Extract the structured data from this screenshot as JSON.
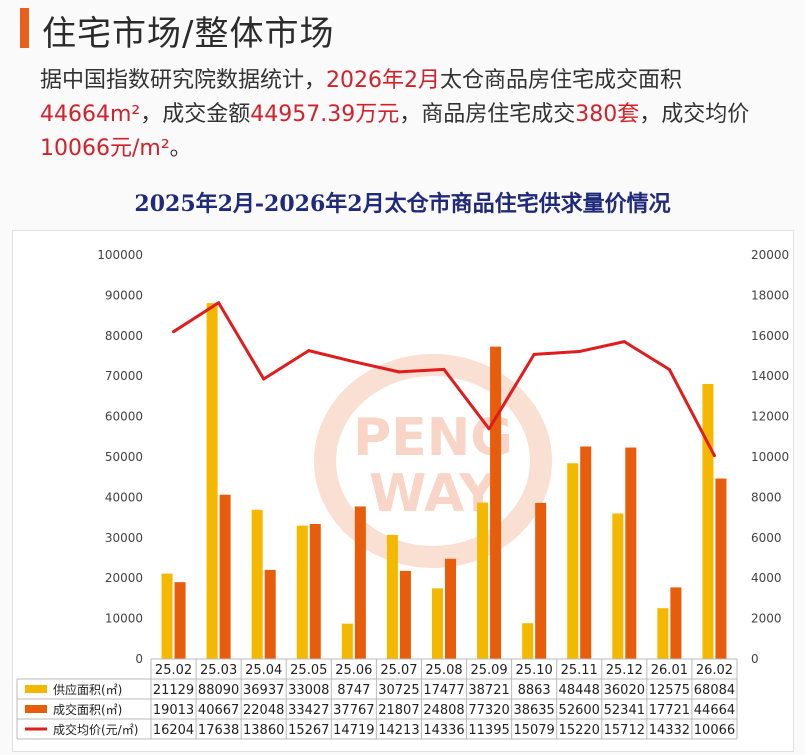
{
  "header": {
    "title": "住宅市场/整体市场"
  },
  "summary": {
    "p1": "据中国指数研究院数据统计，",
    "p2": "2026年2月",
    "p3": "太仓商品房住宅成交面积",
    "p4": "44664m²",
    "p5": "，成交金额",
    "p6": "44957.39万元",
    "p7": "，商品房住宅成交",
    "p8": "380套",
    "p9": "，成交均价",
    "p10": "10066元/m²",
    "p11": "。"
  },
  "watermark": {
    "line1": "PENG",
    "line2": "WAY"
  },
  "chart_data": {
    "type": "bar",
    "title": "2025年2月-2026年2月太仓市商品住宅供求量价情况",
    "categories": [
      "25.02",
      "25.03",
      "25.04",
      "25.05",
      "25.06",
      "25.07",
      "25.08",
      "25.09",
      "25.10",
      "25.11",
      "25.12",
      "26.01",
      "26.02"
    ],
    "series": [
      {
        "name": "供应面积(㎡)",
        "type": "bar",
        "axis": "left",
        "color": "#f5b800",
        "values": [
          21129,
          88090,
          36937,
          33008,
          8747,
          30725,
          17477,
          38721,
          8863,
          48448,
          36020,
          12575,
          68084
        ]
      },
      {
        "name": "成交面积(㎡)",
        "type": "bar",
        "axis": "left",
        "color": "#e85d0c",
        "values": [
          19013,
          40667,
          22048,
          33427,
          37767,
          21807,
          24808,
          77320,
          38635,
          52600,
          52341,
          17721,
          44664
        ]
      },
      {
        "name": "成交均价(元/㎡)",
        "type": "line",
        "axis": "right",
        "color": "#e01c1c",
        "values": [
          16204,
          17638,
          13860,
          15267,
          14719,
          14213,
          14336,
          11395,
          15079,
          15220,
          15712,
          14332,
          10066
        ]
      }
    ],
    "ylim_left": [
      0,
      100000
    ],
    "ylim_right": [
      0,
      20000
    ],
    "yticks_left": [
      0,
      10000,
      20000,
      30000,
      40000,
      50000,
      60000,
      70000,
      80000,
      90000,
      100000
    ],
    "yticks_right": [
      0,
      2000,
      4000,
      6000,
      8000,
      10000,
      12000,
      14000,
      16000,
      18000,
      20000
    ],
    "grid": false,
    "legend": "table-below"
  }
}
